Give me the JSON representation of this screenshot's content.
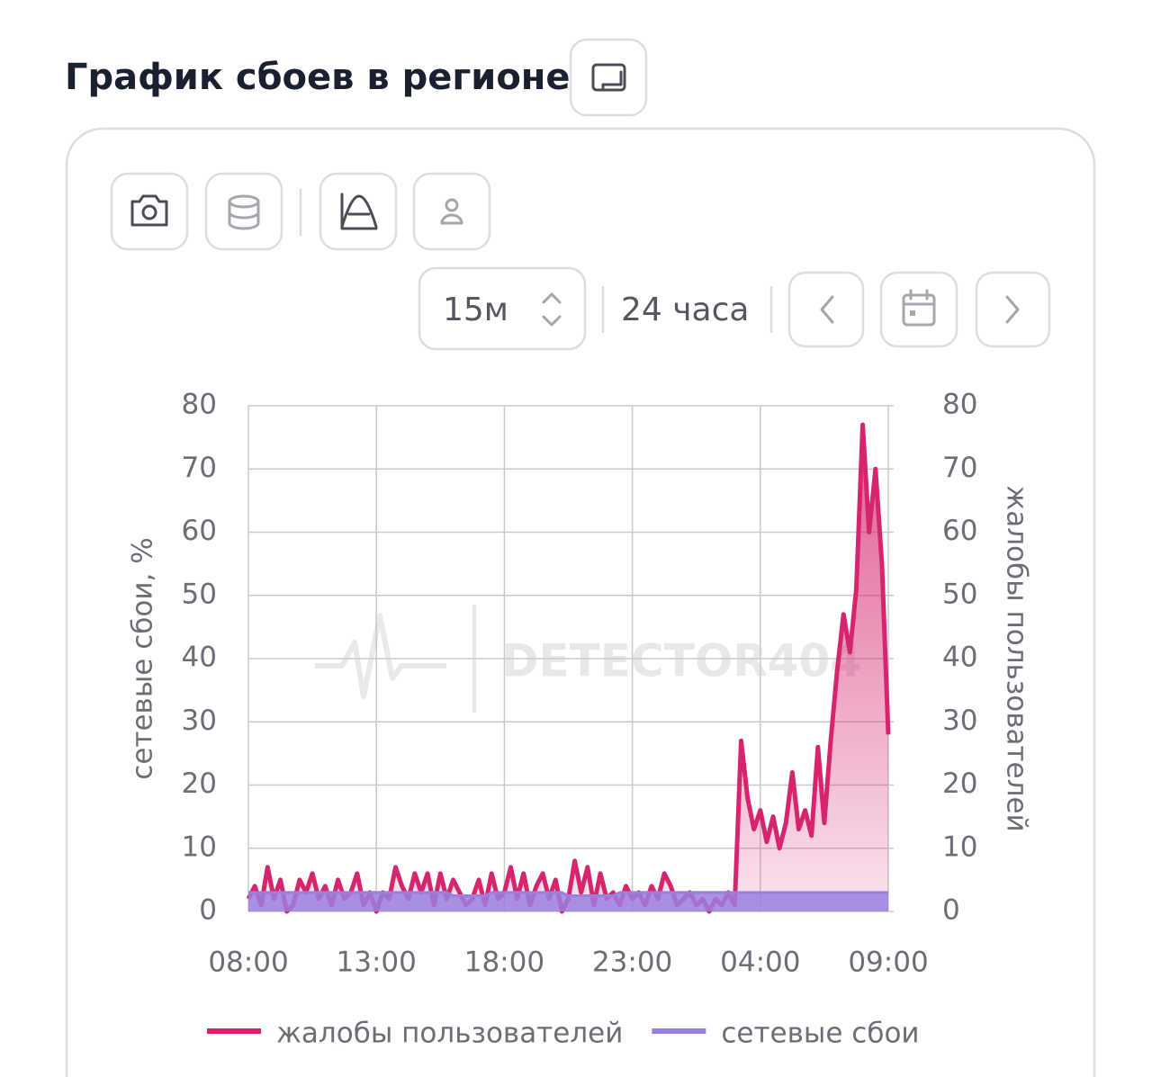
{
  "header": {
    "title": "График сбоев в регионе"
  },
  "controls": {
    "interval": "15м",
    "range": "24 часа"
  },
  "watermark": "DETECTOR404",
  "chart_data": {
    "type": "area-line",
    "categories": [
      "08:00",
      null,
      null,
      null,
      null,
      null,
      null,
      null,
      null,
      null,
      null,
      null,
      null,
      null,
      null,
      null,
      null,
      null,
      null,
      null,
      "13:00",
      null,
      null,
      null,
      null,
      null,
      null,
      null,
      null,
      null,
      null,
      null,
      null,
      null,
      null,
      null,
      null,
      null,
      null,
      null,
      "18:00",
      null,
      null,
      null,
      null,
      null,
      null,
      null,
      null,
      null,
      null,
      null,
      null,
      null,
      null,
      null,
      null,
      null,
      null,
      null,
      "23:00",
      null,
      null,
      null,
      null,
      null,
      null,
      null,
      null,
      null,
      null,
      null,
      null,
      null,
      null,
      null,
      null,
      null,
      null,
      null,
      "04:00",
      null,
      null,
      null,
      null,
      null,
      null,
      null,
      null,
      null,
      null,
      null,
      null,
      null,
      null,
      null,
      null,
      null,
      null,
      null,
      "09:00"
    ],
    "ylabel": "сетевые сбои, %",
    "y2label": "жалобы пользователей",
    "ylim": [
      0,
      80
    ],
    "yticks": [
      0,
      10,
      20,
      30,
      40,
      50,
      60,
      70,
      80
    ],
    "y2lim": [
      0,
      80
    ],
    "y2ticks": [
      0,
      10,
      20,
      30,
      40,
      50,
      60,
      70,
      80
    ],
    "grid": true,
    "series": [
      {
        "name": "жалобы пользователей",
        "color": "#d6246e",
        "axis": "y2",
        "values": [
          2,
          4,
          1,
          7,
          2,
          5,
          0,
          1,
          5,
          3,
          6,
          2,
          4,
          1,
          5,
          2,
          3,
          6,
          1,
          3,
          0,
          3,
          2,
          7,
          4,
          2,
          6,
          3,
          6,
          1,
          6,
          2,
          5,
          3,
          1,
          2,
          5,
          1,
          6,
          2,
          3,
          7,
          2,
          6,
          1,
          4,
          6,
          2,
          5,
          0,
          2,
          8,
          3,
          7,
          1,
          6,
          2,
          3,
          1,
          4,
          2,
          3,
          1,
          4,
          2,
          6,
          4,
          1,
          2,
          3,
          1,
          2,
          0,
          2,
          1,
          3,
          1,
          27,
          18,
          13,
          16,
          11,
          15,
          10,
          14,
          22,
          13,
          16,
          12,
          26,
          14,
          27,
          38,
          47,
          41,
          51,
          77,
          60,
          70,
          55,
          28
        ]
      },
      {
        "name": "сетевые сбои",
        "color": "#9b7fe0",
        "values": [
          3,
          3,
          3,
          3,
          3,
          3,
          3,
          3,
          3,
          3,
          3,
          3,
          3,
          3,
          3,
          3,
          3,
          3,
          3,
          3,
          3,
          3,
          3,
          3,
          3,
          3,
          3,
          3,
          3,
          3,
          3,
          3,
          2.5,
          2.5,
          2.5,
          2.5,
          2.5,
          2.5,
          3,
          3,
          3,
          3,
          3,
          3,
          3,
          3,
          3,
          3,
          3,
          3,
          2.5,
          2.5,
          2.5,
          2.5,
          2.5,
          2.5,
          2.5,
          2.5,
          3,
          3,
          3,
          3,
          3,
          3,
          3,
          3,
          3,
          3,
          3,
          3,
          3,
          3,
          3,
          3,
          3,
          3,
          3,
          3,
          3,
          3,
          3,
          3,
          3,
          3,
          3,
          3,
          3,
          3,
          3,
          3,
          3,
          3,
          3,
          3,
          3,
          3,
          3,
          3,
          3,
          3,
          3
        ]
      }
    ]
  }
}
